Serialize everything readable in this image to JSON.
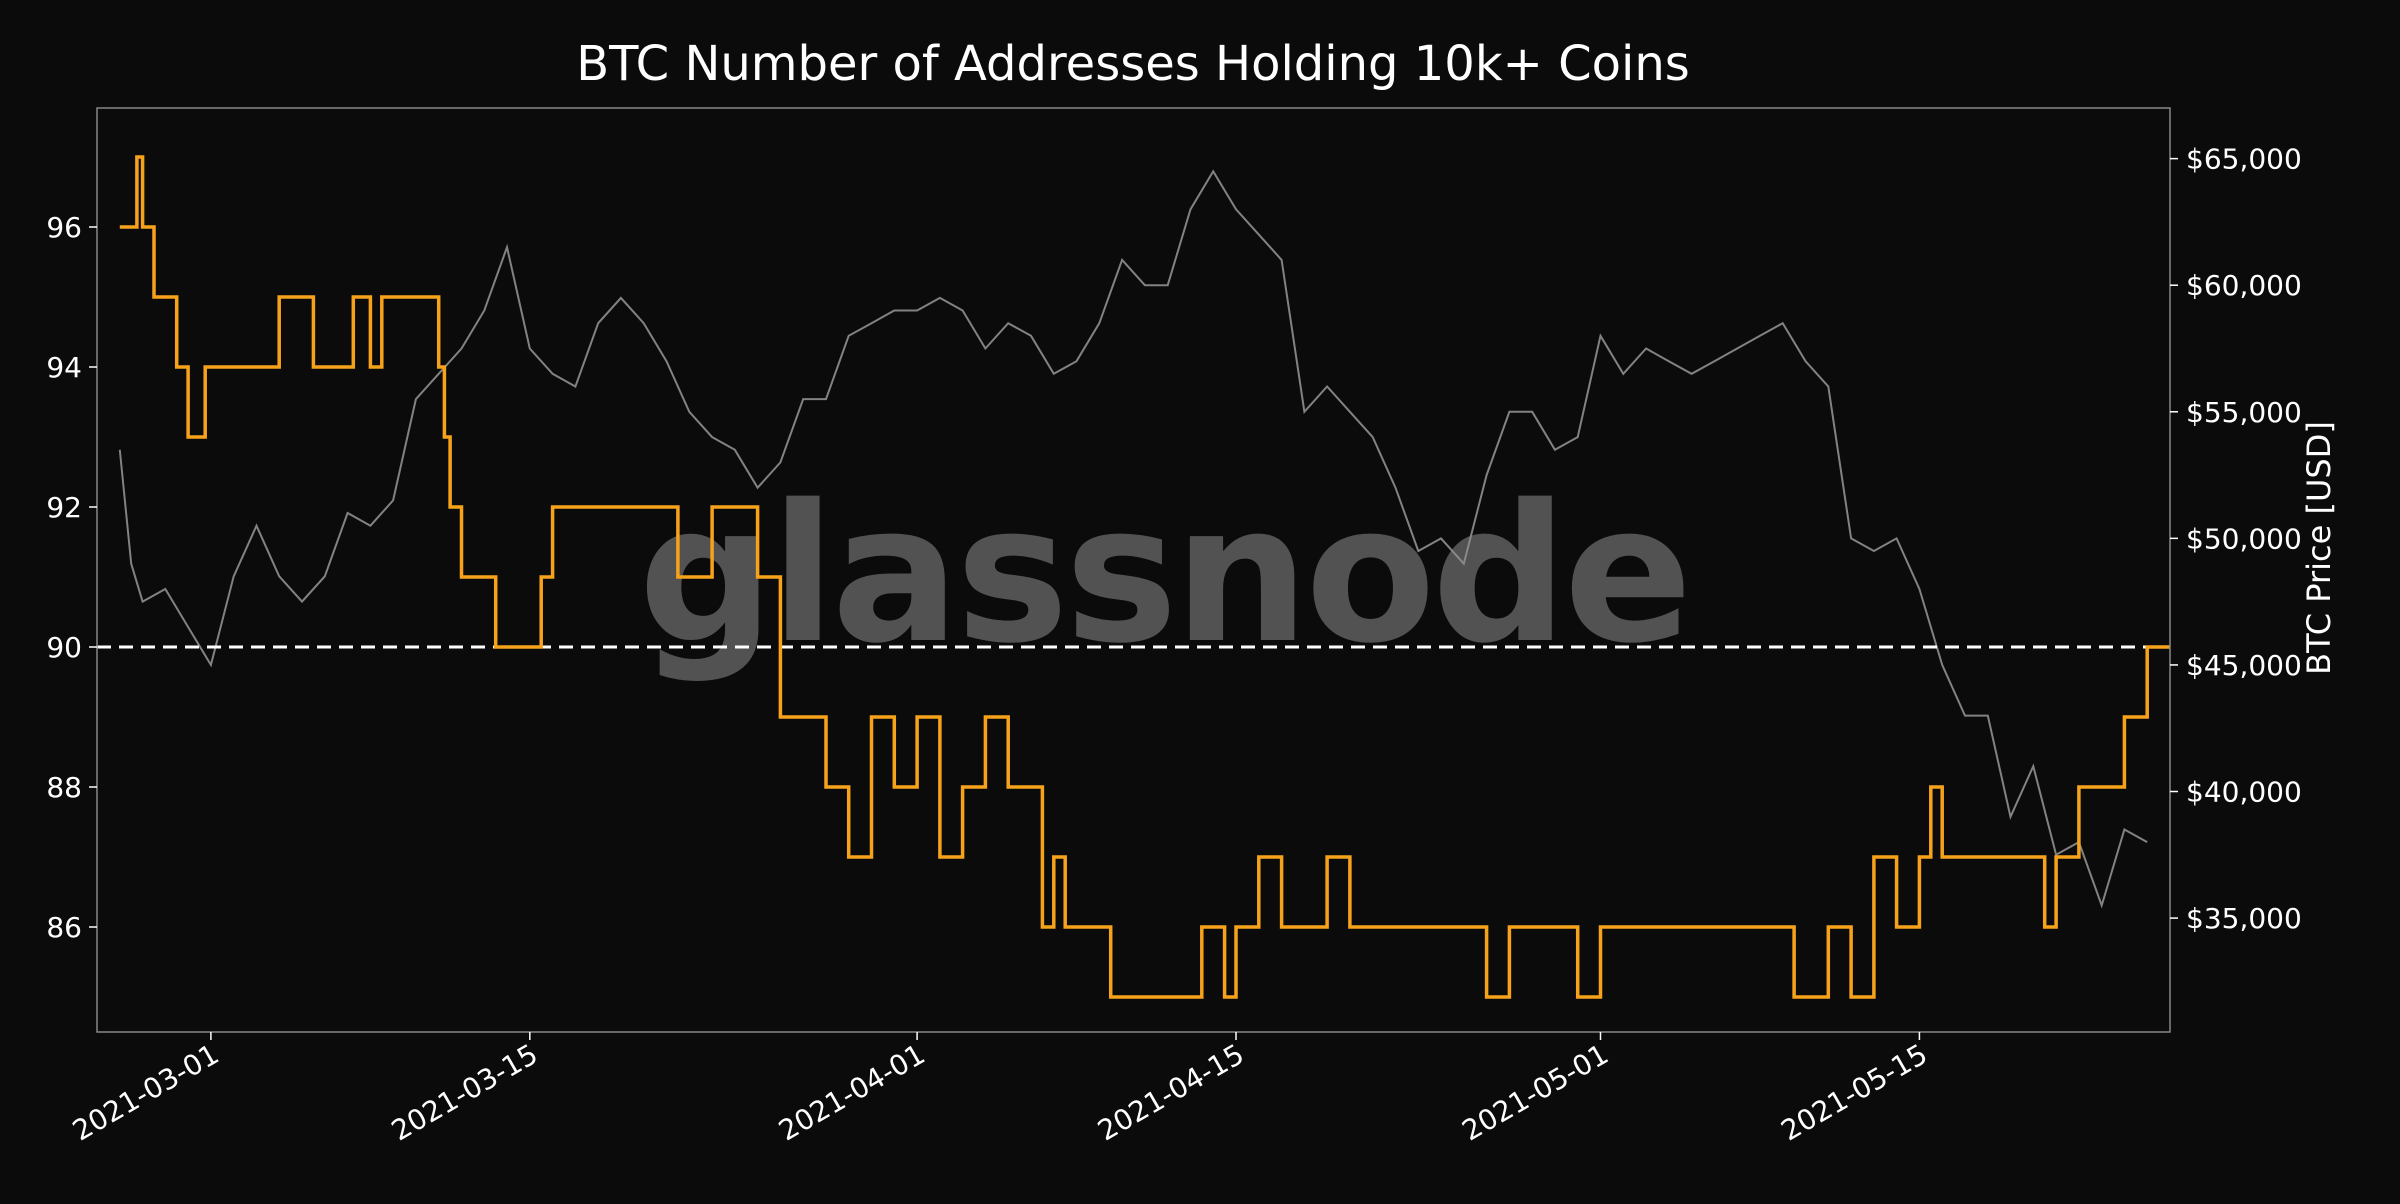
{
  "chart_data": {
    "type": "line",
    "title": "BTC Number of Addresses Holding 10k+ Coins",
    "watermark": "glassnode",
    "xlabel": "",
    "ylabel_left": "",
    "ylabel_right": "BTC Price [USD]",
    "x_range": [
      "2021-02-24",
      "2021-05-26"
    ],
    "x_ticks": [
      "2021-03-01",
      "2021-03-15",
      "2021-04-01",
      "2021-04-15",
      "2021-05-01",
      "2021-05-15"
    ],
    "y_left_range": [
      84.5,
      97.7
    ],
    "y_left_ticks": [
      86,
      88,
      90,
      92,
      94,
      96
    ],
    "y_right_range": [
      30500,
      67000
    ],
    "y_right_ticks": [
      35000,
      40000,
      45000,
      50000,
      55000,
      60000,
      65000
    ],
    "y_right_tick_labels": [
      "$35,000",
      "$40,000",
      "$45,000",
      "$50,000",
      "$55,000",
      "$60,000",
      "$65,000"
    ],
    "reference_line": {
      "y": 90,
      "style": "dashed",
      "color": "#ffffff"
    },
    "colors": {
      "background": "#0b0b0b",
      "frame": "#888888",
      "addresses": "#f7a21b",
      "price": "#8f8f8f"
    },
    "series": [
      {
        "name": "",
        "axis": "left",
        "color": "#f7a21b",
        "step": true,
        "x": [
          "2021-02-25",
          "2021-02-25T18:00",
          "2021-02-26",
          "2021-02-26T12:00",
          "2021-02-27T12:00",
          "2021-02-28",
          "2021-02-28T18:00",
          "2021-03-04",
          "2021-03-05T12:00",
          "2021-03-07T06:00",
          "2021-03-08",
          "2021-03-08T12:00",
          "2021-03-11",
          "2021-03-11T06:00",
          "2021-03-11T12:00",
          "2021-03-12",
          "2021-03-13T12:00",
          "2021-03-15",
          "2021-03-15T12:00",
          "2021-03-16",
          "2021-03-21T12:00",
          "2021-03-23",
          "2021-03-25",
          "2021-03-26",
          "2021-03-28",
          "2021-03-29",
          "2021-03-30",
          "2021-03-31",
          "2021-04-01",
          "2021-04-02",
          "2021-04-03",
          "2021-04-04",
          "2021-04-05",
          "2021-04-06T12:00",
          "2021-04-07",
          "2021-04-07T12:00",
          "2021-04-08",
          "2021-04-09T12:00",
          "2021-04-11",
          "2021-04-13T12:00",
          "2021-04-14T12:00",
          "2021-04-15",
          "2021-04-16",
          "2021-04-17",
          "2021-04-19",
          "2021-04-20",
          "2021-04-21",
          "2021-04-23",
          "2021-04-26",
          "2021-04-27",
          "2021-04-30",
          "2021-05-01",
          "2021-05-09",
          "2021-05-09T12:00",
          "2021-05-11",
          "2021-05-12",
          "2021-05-13",
          "2021-05-14",
          "2021-05-15",
          "2021-05-15T12:00",
          "2021-05-16",
          "2021-05-19T12:00",
          "2021-05-20T12:00",
          "2021-05-21",
          "2021-05-22",
          "2021-05-24",
          "2021-05-25"
        ],
        "values": [
          96,
          97,
          96,
          95,
          94,
          93,
          94,
          95,
          94,
          95,
          94,
          95,
          94,
          93,
          92,
          91,
          90,
          90,
          91,
          92,
          91,
          92,
          91,
          89,
          88,
          87,
          89,
          88,
          89,
          87,
          88,
          89,
          88,
          86,
          87,
          86,
          86,
          85,
          85,
          86,
          85,
          86,
          87,
          86,
          87,
          86,
          86,
          86,
          85,
          86,
          85,
          86,
          86,
          85,
          86,
          85,
          87,
          86,
          87,
          88,
          87,
          87,
          86,
          87,
          88,
          89,
          90
        ]
      },
      {
        "name": "",
        "axis": "right",
        "color": "#8f8f8f",
        "step": false,
        "x": [
          "2021-02-25",
          "2021-02-25T12:00",
          "2021-02-26",
          "2021-02-27",
          "2021-02-28",
          "2021-03-01",
          "2021-03-02",
          "2021-03-03",
          "2021-03-04",
          "2021-03-05",
          "2021-03-06",
          "2021-03-07",
          "2021-03-08",
          "2021-03-09",
          "2021-03-10",
          "2021-03-11",
          "2021-03-12",
          "2021-03-13",
          "2021-03-14",
          "2021-03-15",
          "2021-03-16",
          "2021-03-17",
          "2021-03-18",
          "2021-03-19",
          "2021-03-20",
          "2021-03-21",
          "2021-03-22",
          "2021-03-23",
          "2021-03-24",
          "2021-03-25",
          "2021-03-26",
          "2021-03-27",
          "2021-03-28",
          "2021-03-29",
          "2021-03-30",
          "2021-03-31",
          "2021-04-01",
          "2021-04-02",
          "2021-04-03",
          "2021-04-04",
          "2021-04-05",
          "2021-04-06",
          "2021-04-07",
          "2021-04-08",
          "2021-04-09",
          "2021-04-10",
          "2021-04-11",
          "2021-04-12",
          "2021-04-13",
          "2021-04-14",
          "2021-04-15",
          "2021-04-16",
          "2021-04-17",
          "2021-04-18",
          "2021-04-19",
          "2021-04-20",
          "2021-04-21",
          "2021-04-22",
          "2021-04-23",
          "2021-04-24",
          "2021-04-25",
          "2021-04-26",
          "2021-04-27",
          "2021-04-28",
          "2021-04-29",
          "2021-04-30",
          "2021-05-01",
          "2021-05-02",
          "2021-05-03",
          "2021-05-04",
          "2021-05-05",
          "2021-05-06",
          "2021-05-07",
          "2021-05-08",
          "2021-05-09",
          "2021-05-10",
          "2021-05-11",
          "2021-05-12",
          "2021-05-13",
          "2021-05-14",
          "2021-05-15",
          "2021-05-16",
          "2021-05-17",
          "2021-05-18",
          "2021-05-19",
          "2021-05-20",
          "2021-05-21",
          "2021-05-22",
          "2021-05-23",
          "2021-05-24",
          "2021-05-25"
        ],
        "values": [
          53500,
          49000,
          47500,
          48000,
          46500,
          45000,
          48500,
          50500,
          48500,
          47500,
          48500,
          51000,
          50500,
          51500,
          55500,
          56500,
          57500,
          59000,
          61500,
          57500,
          56500,
          56000,
          58500,
          59500,
          58500,
          57000,
          55000,
          54000,
          53500,
          52000,
          53000,
          55500,
          55500,
          58000,
          58500,
          59000,
          59000,
          59500,
          59000,
          57500,
          58500,
          58000,
          56500,
          57000,
          58500,
          61000,
          60000,
          60000,
          63000,
          64500,
          63000,
          62000,
          61000,
          55000,
          56000,
          55000,
          54000,
          52000,
          49500,
          50000,
          49000,
          52500,
          55000,
          55000,
          53500,
          54000,
          58000,
          56500,
          57500,
          57000,
          56500,
          57000,
          57500,
          58000,
          58500,
          57000,
          56000,
          50000,
          49500,
          50000,
          48000,
          45000,
          43000,
          43000,
          39000,
          41000,
          37500,
          38000,
          35500,
          38500,
          38000
        ]
      }
    ]
  }
}
